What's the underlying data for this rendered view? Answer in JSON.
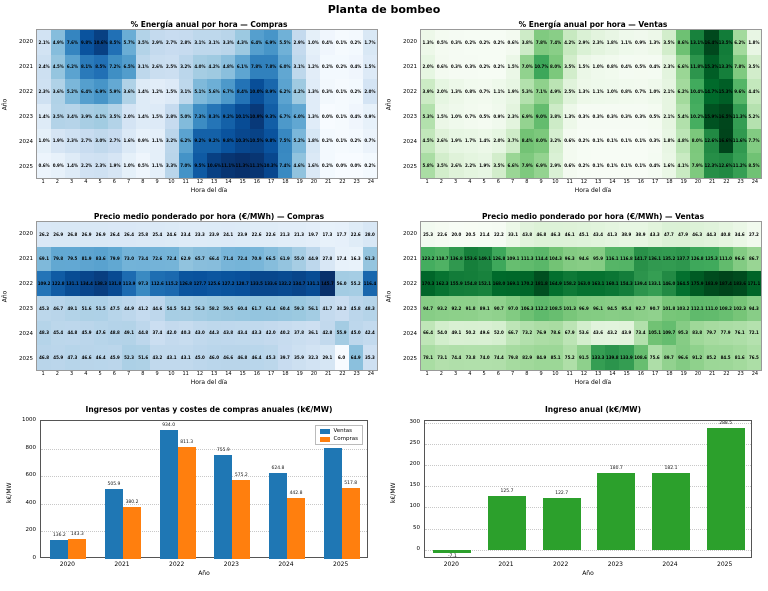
{
  "page_title": "Planta de bombeo",
  "colors": {
    "ventas_blue": "#1f77b4",
    "compras_orange": "#ff7f0e",
    "ingreso_green": "#2ca02c"
  },
  "chart_data": [
    {
      "id": "energia_compras",
      "type": "heatmap",
      "colormap": "Blues",
      "unit": "%",
      "title": "% Energía anual por hora — Compras",
      "xlabel": "Hora del día",
      "ylabel": "Año",
      "years": [
        "2020",
        "2021",
        "2022",
        "2023",
        "2024",
        "2025"
      ],
      "hours": [
        1,
        2,
        3,
        4,
        5,
        6,
        7,
        8,
        9,
        10,
        11,
        12,
        13,
        14,
        15,
        16,
        17,
        18,
        19,
        20,
        21,
        22,
        23,
        24
      ],
      "values": [
        [
          2.1,
          4.9,
          7.6,
          9.8,
          10.6,
          8.5,
          5.7,
          3.5,
          2.9,
          2.7,
          2.8,
          3.1,
          3.1,
          3.3,
          4.3,
          6.4,
          6.9,
          5.5,
          2.9,
          1.0,
          0.4,
          0.1,
          0.2,
          1.7
        ],
        [
          2.4,
          4.5,
          6.2,
          8.1,
          8.5,
          7.2,
          6.5,
          3.1,
          2.6,
          2.5,
          3.2,
          4.0,
          4.2,
          4.8,
          6.1,
          7.8,
          7.8,
          6.0,
          3.1,
          1.2,
          0.2,
          0.2,
          0.4,
          1.5
        ],
        [
          2.3,
          3.6,
          5.2,
          6.4,
          6.9,
          5.9,
          3.6,
          1.4,
          1.2,
          1.5,
          3.1,
          5.1,
          5.6,
          6.7,
          8.4,
          10.0,
          8.9,
          6.2,
          4.2,
          1.3,
          0.3,
          0.1,
          0.2,
          2.0
        ],
        [
          1.4,
          3.5,
          3.4,
          3.9,
          4.1,
          3.5,
          2.0,
          1.4,
          1.5,
          2.8,
          5.0,
          7.3,
          8.3,
          9.2,
          10.1,
          10.9,
          9.3,
          6.7,
          6.0,
          1.3,
          0.0,
          0.1,
          0.4,
          0.9
        ],
        [
          1.0,
          1.9,
          2.3,
          2.7,
          3.0,
          2.7,
          1.6,
          0.9,
          1.1,
          3.2,
          6.2,
          9.2,
          9.2,
          9.8,
          10.3,
          10.5,
          9.8,
          7.5,
          5.2,
          1.8,
          0.2,
          0.1,
          0.2,
          0.7
        ],
        [
          0.6,
          0.9,
          1.4,
          2.2,
          2.3,
          1.9,
          1.0,
          0.5,
          1.1,
          3.3,
          7.0,
          9.5,
          10.6,
          11.1,
          11.3,
          11.1,
          10.3,
          7.4,
          4.6,
          1.6,
          0.2,
          0.0,
          0.0,
          0.2
        ]
      ]
    },
    {
      "id": "energia_ventas",
      "type": "heatmap",
      "colormap": "Greens",
      "unit": "%",
      "title": "% Energía anual por hora — Ventas",
      "xlabel": "Hora del día",
      "ylabel": "Año",
      "years": [
        "2020",
        "2021",
        "2022",
        "2023",
        "2024",
        "2025"
      ],
      "hours": [
        1,
        2,
        3,
        4,
        5,
        6,
        7,
        8,
        9,
        10,
        11,
        12,
        13,
        14,
        15,
        16,
        17,
        18,
        19,
        20,
        21,
        22,
        23,
        24
      ],
      "values": [
        [
          1.3,
          0.5,
          0.3,
          0.2,
          0.2,
          0.2,
          0.6,
          3.8,
          7.8,
          7.4,
          4.2,
          2.9,
          2.3,
          1.8,
          1.1,
          0.9,
          1.3,
          3.5,
          8.6,
          13.1,
          16.4,
          13.5,
          6.2,
          1.8
        ],
        [
          2.0,
          0.6,
          0.3,
          0.3,
          0.2,
          0.2,
          1.5,
          7.0,
          10.7,
          8.0,
          3.5,
          1.5,
          1.0,
          0.8,
          0.4,
          0.5,
          0.4,
          2.3,
          6.6,
          11.8,
          15.3,
          13.3,
          7.8,
          3.5
        ],
        [
          3.9,
          2.0,
          1.3,
          0.8,
          0.7,
          1.1,
          1.9,
          5.3,
          7.1,
          4.9,
          2.5,
          1.3,
          1.1,
          1.0,
          0.8,
          0.7,
          1.0,
          2.1,
          6.2,
          10.4,
          14.7,
          15.3,
          9.6,
          4.4
        ],
        [
          5.3,
          1.5,
          1.0,
          0.7,
          0.5,
          0.9,
          2.3,
          6.9,
          9.0,
          3.8,
          1.3,
          0.3,
          0.3,
          0.3,
          0.3,
          0.3,
          0.5,
          2.1,
          5.4,
          10.2,
          15.9,
          16.5,
          11.3,
          5.2
        ],
        [
          4.5,
          2.6,
          1.9,
          1.7,
          1.4,
          2.0,
          3.7,
          8.4,
          8.0,
          3.2,
          0.6,
          0.2,
          0.1,
          0.1,
          0.1,
          0.1,
          0.3,
          1.8,
          4.8,
          8.0,
          12.6,
          16.6,
          11.6,
          7.7
        ],
        [
          5.8,
          3.5,
          2.6,
          2.2,
          1.9,
          3.5,
          6.6,
          7.9,
          6.9,
          2.9,
          0.6,
          0.2,
          0.1,
          0.1,
          0.1,
          0.1,
          0.4,
          1.6,
          4.1,
          7.9,
          12.3,
          12.6,
          11.2,
          8.5
        ]
      ]
    },
    {
      "id": "precio_compras",
      "type": "heatmap",
      "colormap": "Blues",
      "unit": "",
      "title": "Precio medio ponderado por hora (€/MWh) — Compras",
      "xlabel": "Hora del día",
      "ylabel": "Año",
      "years": [
        "2020",
        "2021",
        "2022",
        "2023",
        "2024",
        "2025"
      ],
      "hours": [
        1,
        2,
        3,
        4,
        5,
        6,
        7,
        8,
        9,
        10,
        11,
        12,
        13,
        14,
        15,
        16,
        17,
        18,
        19,
        20,
        21,
        22,
        23,
        24
      ],
      "values": [
        [
          26.2,
          26.9,
          26.8,
          26.9,
          26.9,
          26.4,
          26.4,
          25.8,
          25.4,
          24.6,
          23.4,
          23.3,
          23.9,
          24.1,
          23.9,
          22.6,
          22.6,
          21.3,
          21.3,
          19.7,
          17.3,
          17.7,
          22.6,
          28.0
        ],
        [
          69.1,
          79.8,
          79.5,
          81.9,
          83.6,
          79.9,
          73.0,
          73.4,
          72.6,
          72.4,
          62.9,
          65.7,
          66.4,
          71.4,
          72.4,
          70.9,
          66.5,
          61.9,
          55.0,
          44.9,
          27.8,
          17.4,
          16.3,
          61.3
        ],
        [
          109.2,
          122.8,
          131.1,
          134.4,
          138.3,
          131.8,
          113.9,
          97.3,
          112.6,
          115.2,
          126.8,
          127.7,
          125.6,
          127.2,
          128.7,
          133.5,
          133.6,
          132.2,
          134.7,
          131.1,
          145.7,
          56.0,
          55.2,
          116.4
        ],
        [
          45.3,
          46.7,
          49.1,
          51.6,
          51.5,
          47.5,
          44.9,
          41.2,
          44.6,
          54.5,
          54.2,
          56.3,
          58.2,
          59.5,
          60.4,
          61.7,
          61.4,
          60.4,
          59.3,
          56.1,
          41.7,
          38.2,
          45.8,
          48.3
        ],
        [
          48.3,
          45.4,
          44.8,
          45.9,
          47.6,
          48.8,
          49.1,
          44.8,
          37.4,
          42.0,
          40.3,
          43.0,
          44.3,
          43.8,
          43.4,
          43.3,
          42.0,
          40.2,
          37.8,
          36.1,
          42.8,
          55.9,
          45.0,
          42.4
        ],
        [
          46.8,
          45.9,
          47.3,
          46.6,
          46.4,
          45.9,
          52.3,
          51.6,
          43.2,
          43.1,
          43.1,
          45.0,
          46.0,
          46.6,
          46.8,
          46.4,
          45.3,
          39.7,
          35.9,
          32.3,
          29.1,
          6.0,
          64.9,
          35.3
        ]
      ]
    },
    {
      "id": "precio_ventas",
      "type": "heatmap",
      "colormap": "Greens",
      "unit": "",
      "title": "Precio medio ponderado por hora (€/MWh) — Ventas",
      "xlabel": "Hora del día",
      "ylabel": "Año",
      "years": [
        "2020",
        "2021",
        "2022",
        "2023",
        "2024",
        "2025"
      ],
      "hours": [
        1,
        2,
        3,
        4,
        5,
        6,
        7,
        8,
        9,
        10,
        11,
        12,
        13,
        14,
        15,
        16,
        17,
        18,
        19,
        20,
        21,
        22,
        23,
        24
      ],
      "values": [
        [
          25.3,
          22.6,
          20.0,
          20.5,
          21.4,
          22.2,
          33.1,
          43.8,
          46.8,
          46.3,
          46.1,
          45.1,
          43.4,
          41.3,
          38.9,
          38.9,
          43.3,
          47.7,
          47.9,
          46.3,
          44.3,
          40.8,
          34.6,
          27.2
        ],
        [
          123.2,
          118.7,
          136.8,
          153.6,
          149.1,
          126.8,
          109.1,
          111.3,
          114.4,
          104.3,
          96.3,
          94.6,
          95.9,
          116.1,
          116.8,
          141.7,
          136.1,
          135.2,
          137.7,
          126.8,
          125.3,
          111.0,
          96.6,
          86.7
        ],
        [
          170.3,
          162.3,
          155.9,
          154.8,
          152.1,
          168.0,
          169.1,
          170.2,
          181.8,
          164.9,
          158.2,
          163.0,
          163.1,
          160.1,
          154.3,
          139.4,
          133.1,
          146.0,
          164.5,
          175.9,
          183.9,
          187.4,
          183.6,
          171.1
        ],
        [
          94.7,
          93.2,
          92.2,
          91.8,
          89.1,
          90.7,
          97.0,
          106.3,
          112.2,
          108.5,
          101.3,
          96.9,
          96.1,
          94.5,
          95.4,
          92.7,
          90.7,
          101.8,
          103.2,
          112.1,
          111.0,
          108.2,
          102.3,
          94.3
        ],
        [
          66.4,
          54.0,
          49.1,
          50.2,
          49.6,
          52.0,
          66.7,
          73.2,
          76.9,
          78.6,
          67.9,
          53.6,
          43.6,
          43.2,
          43.9,
          73.4,
          105.1,
          109.7,
          95.3,
          83.8,
          79.7,
          77.9,
          76.1,
          72.1
        ],
        [
          78.1,
          73.1,
          74.4,
          73.8,
          74.0,
          74.4,
          79.8,
          82.9,
          84.9,
          85.1,
          75.2,
          91.5,
          133.3,
          139.8,
          133.9,
          108.6,
          75.6,
          89.7,
          96.6,
          91.2,
          85.2,
          84.5,
          81.6,
          76.5
        ]
      ]
    },
    {
      "id": "ingresos_costes",
      "type": "bar",
      "title": "Ingresos por ventas y costes de compras anuales (k€/MW)",
      "xlabel": "Año",
      "ylabel": "k€/MW",
      "categories": [
        "2020",
        "2021",
        "2022",
        "2023",
        "2024",
        "2025"
      ],
      "series": [
        {
          "name": "Ventas",
          "color": "#1f77b4",
          "values": [
            136.2,
            505.9,
            934.0,
            755.9,
            624.8,
            806.3
          ]
        },
        {
          "name": "Compras",
          "color": "#ff7f0e",
          "values": [
            143.3,
            380.2,
            811.3,
            575.2,
            442.8,
            517.8
          ]
        }
      ],
      "ylim": [
        0,
        1000
      ],
      "yticks": [
        0,
        200,
        400,
        600,
        800,
        1000
      ],
      "grid": true,
      "legend_position": "upper right"
    },
    {
      "id": "ingreso_anual",
      "type": "bar",
      "title": "Ingreso anual (k€/MW)",
      "xlabel": "Año",
      "ylabel": "k€/MW",
      "categories": [
        "2020",
        "2021",
        "2022",
        "2023",
        "2024",
        "2025"
      ],
      "series": [
        {
          "name": "Ingreso",
          "color": "#2ca02c",
          "values": [
            -7.1,
            125.7,
            122.7,
            180.7,
            182.1,
            288.5
          ]
        }
      ],
      "ylim": [
        -22,
        304
      ],
      "yticks": [
        0,
        50,
        100,
        150,
        200,
        250,
        300
      ],
      "grid": true,
      "legend_position": "none"
    }
  ]
}
